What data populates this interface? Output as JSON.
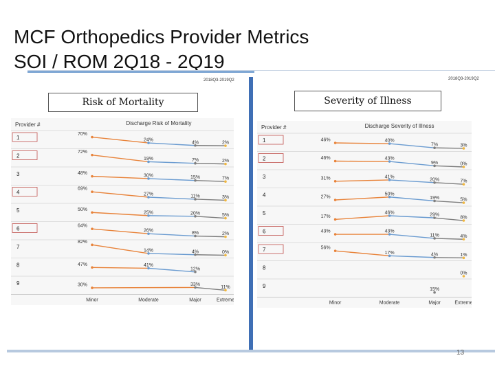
{
  "slide": {
    "title_line1": "MCF Orthopedics Provider Metrics",
    "title_line2": "SOI / ROM   2Q18 - 2Q19",
    "date_left": "2018Q3-2019Q2",
    "date_right": "2018Q3-2019Q2",
    "label_left": "Risk of Mortality",
    "label_right": "Severity of Illness",
    "page_number": "13"
  },
  "chart_data": [
    {
      "type": "line",
      "title": "Discharge Risk of Mortality",
      "row_header": "Provider #",
      "categories": [
        "Minor",
        "Moderate",
        "Major",
        "Extreme"
      ],
      "providers": [
        "1",
        "2",
        "3",
        "4",
        "5",
        "6",
        "7",
        "8",
        "9"
      ],
      "boxed_providers": [
        "1",
        "2",
        "4",
        "6"
      ],
      "series": [
        {
          "values": [
            70,
            24,
            4,
            2
          ]
        },
        {
          "values": [
            72,
            19,
            7,
            2
          ]
        },
        {
          "values": [
            48,
            30,
            15,
            7
          ]
        },
        {
          "values": [
            69,
            27,
            11,
            3
          ]
        },
        {
          "values": [
            50,
            25,
            20,
            5
          ]
        },
        {
          "values": [
            64,
            26,
            8,
            2
          ]
        },
        {
          "values": [
            82,
            14,
            4,
            0
          ]
        },
        {
          "values": [
            47,
            41,
            12,
            null
          ]
        },
        {
          "values": [
            30,
            null,
            33,
            11
          ]
        }
      ],
      "colors": [
        "#e8833a",
        "#6a9bd0",
        "#7e7e7e",
        "#f0b73f"
      ]
    },
    {
      "type": "line",
      "title": "Discharge Severity of Illness",
      "row_header": "Provider #",
      "categories": [
        "Minor",
        "Moderate",
        "Major",
        "Extreme"
      ],
      "providers": [
        "1",
        "2",
        "3",
        "4",
        "5",
        "6",
        "7",
        "8",
        "9"
      ],
      "boxed_providers": [
        "1",
        "2",
        "6",
        "7"
      ],
      "series": [
        {
          "values": [
            46,
            40,
            7,
            3
          ]
        },
        {
          "values": [
            46,
            43,
            9,
            0
          ]
        },
        {
          "values": [
            31,
            41,
            20,
            7
          ]
        },
        {
          "values": [
            27,
            50,
            19,
            5
          ]
        },
        {
          "values": [
            17,
            46,
            29,
            8
          ]
        },
        {
          "values": [
            43,
            43,
            11,
            4
          ]
        },
        {
          "values": [
            56,
            17,
            4,
            1
          ]
        },
        {
          "values": [
            null,
            null,
            null,
            0
          ]
        },
        {
          "values": [
            null,
            null,
            15,
            null
          ]
        }
      ],
      "colors": [
        "#e8833a",
        "#6a9bd0",
        "#7e7e7e",
        "#f0b73f"
      ]
    }
  ]
}
